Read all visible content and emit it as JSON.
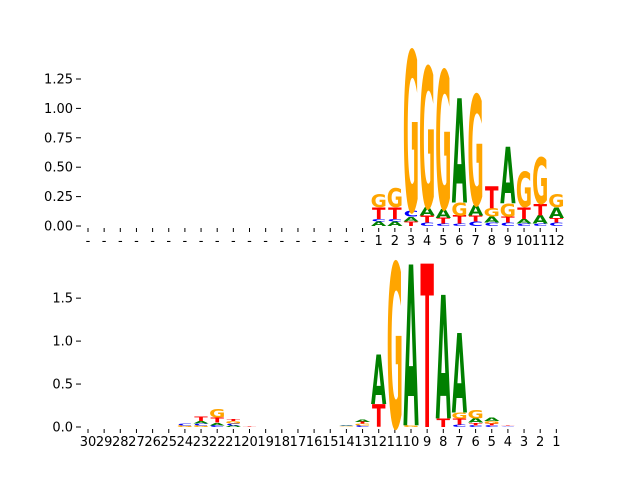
{
  "chart_data": [
    {
      "type": "sequence-logo",
      "ylim": [
        0,
        1.42
      ],
      "yticks": [
        0.0,
        0.25,
        0.5,
        0.75,
        1.0,
        1.25
      ],
      "ytick_labels": [
        "0.00",
        "0.25",
        "0.50",
        "0.75",
        "1.00",
        "1.25"
      ],
      "positions": [
        "-",
        "-",
        "-",
        "-",
        "-",
        "-",
        "-",
        "-",
        "-",
        "-",
        "-",
        "-",
        "-",
        "-",
        "-",
        "-",
        "-",
        "-",
        "1",
        "2",
        "3",
        "4",
        "5",
        "6",
        "7",
        "8",
        "9",
        "10",
        "11",
        "12"
      ],
      "columns": [
        [],
        [],
        [],
        [],
        [],
        [],
        [],
        [],
        [],
        [],
        [],
        [],
        [],
        [],
        [],
        [],
        [],
        [],
        [
          [
            "A",
            0.04
          ],
          [
            "C",
            0.02
          ],
          [
            "T",
            0.1
          ],
          [
            "G",
            0.11
          ]
        ],
        [
          [
            "A",
            0.04
          ],
          [
            "C",
            0.02
          ],
          [
            "T",
            0.1
          ],
          [
            "G",
            0.16
          ]
        ],
        [
          [
            "T",
            0.04
          ],
          [
            "A",
            0.04
          ],
          [
            "C",
            0.05
          ],
          [
            "G",
            1.38
          ]
        ],
        [
          [
            "C",
            0.03
          ],
          [
            "T",
            0.06
          ],
          [
            "A",
            0.07
          ],
          [
            "G",
            1.21
          ]
        ],
        [
          [
            "C",
            0.02
          ],
          [
            "T",
            0.05
          ],
          [
            "A",
            0.08
          ],
          [
            "G",
            1.19
          ]
        ],
        [
          [
            "C",
            0.02
          ],
          [
            "T",
            0.07
          ],
          [
            "G",
            0.11
          ],
          [
            "A",
            0.9
          ]
        ],
        [
          [
            "C",
            0.04
          ],
          [
            "T",
            0.05
          ],
          [
            "A",
            0.09
          ],
          [
            "G",
            0.95
          ]
        ],
        [
          [
            "C",
            0.03
          ],
          [
            "A",
            0.05
          ],
          [
            "G",
            0.07
          ],
          [
            "T",
            0.19
          ]
        ],
        [
          [
            "C",
            0.03
          ],
          [
            "T",
            0.05
          ],
          [
            "G",
            0.11
          ],
          [
            "A",
            0.49
          ]
        ],
        [
          [
            "C",
            0.02
          ],
          [
            "A",
            0.04
          ],
          [
            "T",
            0.1
          ],
          [
            "G",
            0.3
          ]
        ],
        [
          [
            "C",
            0.02
          ],
          [
            "A",
            0.07
          ],
          [
            "T",
            0.1
          ],
          [
            "G",
            0.4
          ]
        ],
        [
          [
            "C",
            0.03
          ],
          [
            "T",
            0.04
          ],
          [
            "A",
            0.09
          ],
          [
            "G",
            0.11
          ]
        ]
      ]
    },
    {
      "type": "sequence-logo",
      "ylim": [
        0,
        1.95
      ],
      "yticks": [
        0.0,
        0.5,
        1.0,
        1.5
      ],
      "ytick_labels": [
        "0.0",
        "0.5",
        "1.0",
        "1.5"
      ],
      "positions": [
        "30",
        "29",
        "28",
        "27",
        "26",
        "25",
        "24",
        "23",
        "22",
        "21",
        "20",
        "19",
        "18",
        "17",
        "16",
        "15",
        "14",
        "13",
        "12",
        "11",
        "10",
        "9",
        "8",
        "7",
        "6",
        "5",
        "4",
        "3",
        "2",
        "1"
      ],
      "columns": [
        [],
        [],
        [],
        [],
        [],
        [],
        [
          [
            "G",
            0.02
          ],
          [
            "C",
            0.02
          ]
        ],
        [
          [
            "G",
            0.02
          ],
          [
            "C",
            0.02
          ],
          [
            "A",
            0.03
          ],
          [
            "T",
            0.05
          ]
        ],
        [
          [
            "C",
            0.02
          ],
          [
            "A",
            0.03
          ],
          [
            "T",
            0.06
          ],
          [
            "G",
            0.1
          ]
        ],
        [
          [
            "A",
            0.02
          ],
          [
            "C",
            0.02
          ],
          [
            "G",
            0.03
          ],
          [
            "T",
            0.02
          ]
        ],
        [
          [
            "T",
            0.01
          ]
        ],
        [],
        [],
        [],
        [],
        [],
        [
          [
            "G",
            0.01
          ],
          [
            "C",
            0.01
          ],
          [
            "A",
            0.01
          ]
        ],
        [
          [
            "C",
            0.02
          ],
          [
            "G",
            0.02
          ],
          [
            "T",
            0.02
          ],
          [
            "A",
            0.03
          ]
        ],
        [
          [
            "T",
            0.27
          ],
          [
            "A",
            0.58
          ]
        ],
        [
          [
            "G",
            1.94
          ]
        ],
        [
          [
            "G",
            0.02
          ],
          [
            "A",
            1.9
          ]
        ],
        [
          [
            "T",
            1.93
          ]
        ],
        [
          [
            "T",
            0.1
          ],
          [
            "A",
            1.46
          ]
        ],
        [
          [
            "C",
            0.03
          ],
          [
            "T",
            0.07
          ],
          [
            "G",
            0.07
          ],
          [
            "A",
            0.94
          ]
        ],
        [
          [
            "C",
            0.02
          ],
          [
            "T",
            0.03
          ],
          [
            "A",
            0.05
          ],
          [
            "G",
            0.1
          ]
        ],
        [
          [
            "C",
            0.02
          ],
          [
            "T",
            0.02
          ],
          [
            "G",
            0.03
          ],
          [
            "A",
            0.04
          ]
        ],
        [
          [
            "C",
            0.01
          ],
          [
            "T",
            0.01
          ]
        ],
        [],
        [],
        []
      ]
    }
  ],
  "colors": {
    "A": "#008000",
    "C": "#0000ff",
    "G": "#ffa500",
    "T": "#ff0000"
  }
}
